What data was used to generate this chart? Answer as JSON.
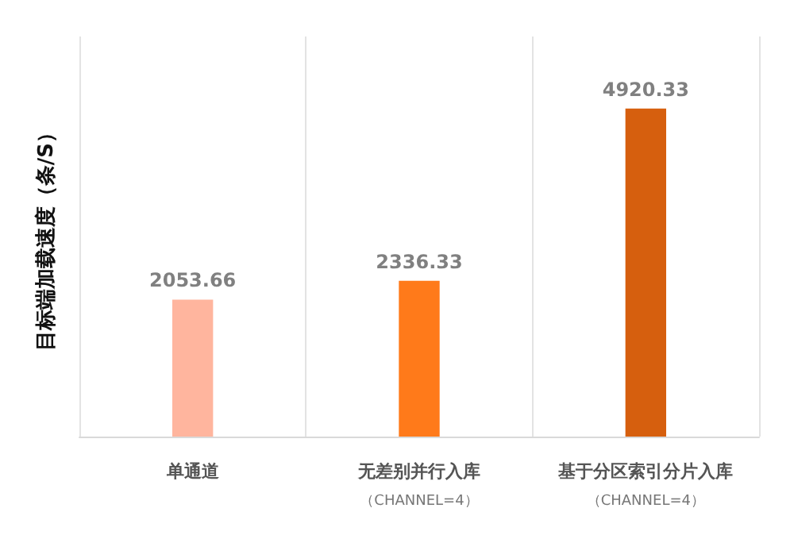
{
  "chart_data": {
    "type": "bar",
    "ylabel": "目标端加载速度（条/S）",
    "categories": [
      "单通道",
      "无差别并行入库（CHANNEL=4）",
      "基于分区索引分片入库（CHANNEL=4）"
    ],
    "values": [
      2053.66,
      2336.33,
      4920.33
    ],
    "colors": [
      "#ffb59e",
      "#ff7a1a",
      "#d65f0e"
    ],
    "ylim": [
      0,
      6000
    ],
    "tick_labels": "x",
    "grid": "x",
    "data_labels": true
  }
}
